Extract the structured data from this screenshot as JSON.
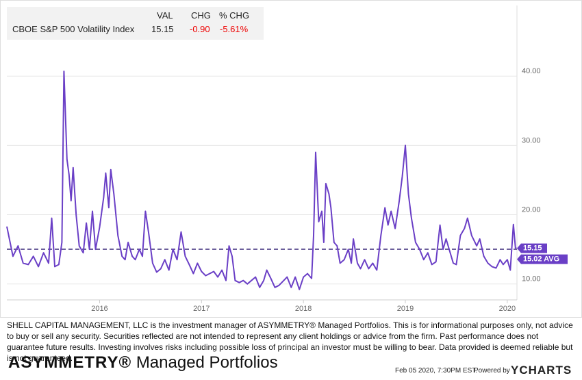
{
  "header": {
    "columns": [
      "VAL",
      "CHG",
      "% CHG"
    ],
    "row": {
      "name": "CBOE S&P 500 Volatility Index",
      "val": "15.15",
      "chg": "-0.90",
      "pct_chg": "-5.61%"
    }
  },
  "chart_data": {
    "type": "line",
    "x": [
      2015.09,
      2015.15,
      2015.2,
      2015.25,
      2015.3,
      2015.35,
      2015.4,
      2015.45,
      2015.5,
      2015.53,
      2015.56,
      2015.6,
      2015.63,
      2015.65,
      2015.68,
      2015.7,
      2015.72,
      2015.74,
      2015.77,
      2015.8,
      2015.84,
      2015.87,
      2015.9,
      2015.93,
      2015.96,
      2016.0,
      2016.04,
      2016.06,
      2016.09,
      2016.11,
      2016.14,
      2016.18,
      2016.22,
      2016.25,
      2016.28,
      2016.32,
      2016.35,
      2016.39,
      2016.42,
      2016.45,
      2016.48,
      2016.52,
      2016.56,
      2016.6,
      2016.64,
      2016.68,
      2016.72,
      2016.76,
      2016.8,
      2016.84,
      2016.88,
      2016.92,
      2016.96,
      2017.0,
      2017.04,
      2017.08,
      2017.12,
      2017.16,
      2017.2,
      2017.24,
      2017.27,
      2017.3,
      2017.33,
      2017.37,
      2017.41,
      2017.45,
      2017.49,
      2017.53,
      2017.57,
      2017.61,
      2017.64,
      2017.68,
      2017.72,
      2017.76,
      2017.8,
      2017.84,
      2017.88,
      2017.92,
      2017.96,
      2018.0,
      2018.04,
      2018.08,
      2018.1,
      2018.12,
      2018.15,
      2018.18,
      2018.2,
      2018.22,
      2018.25,
      2018.27,
      2018.3,
      2018.33,
      2018.36,
      2018.4,
      2018.44,
      2018.47,
      2018.49,
      2018.53,
      2018.56,
      2018.6,
      2018.64,
      2018.68,
      2018.72,
      2018.76,
      2018.8,
      2018.83,
      2018.86,
      2018.9,
      2018.94,
      2018.97,
      2019.0,
      2019.03,
      2019.06,
      2019.1,
      2019.14,
      2019.18,
      2019.22,
      2019.26,
      2019.3,
      2019.34,
      2019.37,
      2019.4,
      2019.43,
      2019.47,
      2019.5,
      2019.54,
      2019.58,
      2019.61,
      2019.65,
      2019.7,
      2019.73,
      2019.77,
      2019.81,
      2019.85,
      2019.89,
      2019.93,
      2019.96,
      2020.0,
      2020.03,
      2020.06,
      2020.08,
      2020.09
    ],
    "values": [
      18.3,
      14,
      15.5,
      13,
      12.8,
      14,
      12.5,
      14.5,
      13,
      19.5,
      12.5,
      12.8,
      16,
      40.7,
      28,
      25.8,
      22,
      26.8,
      20,
      15.5,
      14.5,
      18.8,
      15,
      20.5,
      15,
      18.2,
      22.5,
      26,
      21,
      26.5,
      23,
      17,
      14,
      13.5,
      16,
      14,
      13.5,
      15,
      14,
      20.5,
      17.5,
      13,
      11.7,
      12.2,
      13.5,
      12,
      15,
      13.5,
      17.5,
      14,
      12.8,
      11.5,
      13,
      11.8,
      11.2,
      11.5,
      11.8,
      11,
      12,
      10.5,
      15.5,
      14,
      10.5,
      10.2,
      10.5,
      10,
      10.5,
      11,
      9.5,
      10.5,
      12,
      10.8,
      9.5,
      9.8,
      10.4,
      11,
      9.5,
      11,
      9.2,
      11,
      11.5,
      10.8,
      17,
      29,
      19,
      20.5,
      16,
      24.5,
      23,
      21,
      16,
      15.5,
      13,
      13.5,
      15,
      13,
      16.5,
      13,
      12.2,
      13.5,
      12.2,
      13,
      12,
      17,
      21,
      18.5,
      20.5,
      18,
      22,
      25.5,
      30,
      23,
      19.5,
      16,
      15,
      13.5,
      14.5,
      12.8,
      13.2,
      18.5,
      15,
      16.5,
      15,
      13,
      12.8,
      17,
      18,
      19.5,
      17,
      15.5,
      16.5,
      14,
      13,
      12.5,
      12.3,
      13.5,
      12.8,
      13.5,
      12,
      18.6,
      15.2,
      15.15
    ],
    "color": "#6a3fc6",
    "average": {
      "value": 15.02,
      "label": "15.02 AVG"
    },
    "xlim": [
      2015.09,
      2020.095
    ],
    "xticks": [
      2016,
      2017,
      2018,
      2019,
      2020
    ],
    "ylim": [
      7.7,
      50.2
    ],
    "yticks": [
      {
        "value": 10,
        "label": "10.00"
      },
      {
        "value": 20,
        "label": "20.00"
      },
      {
        "value": 30,
        "label": "30.00"
      },
      {
        "value": 40,
        "label": "40.00"
      }
    ],
    "grid": true
  },
  "footer": {
    "disclaimer": "SHELL CAPITAL MANAGEMENT, LLC is the investment manager of ASYMMETRY® Managed Portfolios. This is for informational purposes only, not advice to buy or sell any security. Securities reflected are not intended to represent any client holdings or advice from the firm. Past performance does not guarantee future results. Investing involves risks including possible loss of principal an investor must be willing to bear. Data provided is deemed reliable but is not guaranteed.",
    "brand": "ASYMMETRY®",
    "brand_tail": "Managed Portfolios",
    "timestamp": "Feb 05 2020, 7:30PM EST.",
    "powered": "Powered by",
    "provider": "YCHARTS"
  }
}
